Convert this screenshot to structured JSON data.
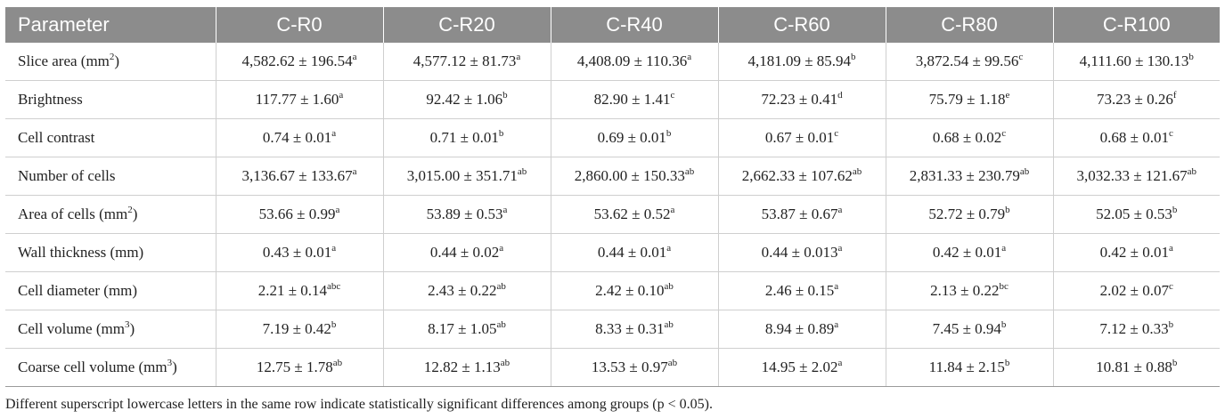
{
  "table": {
    "headers": [
      "Parameter",
      "C-R0",
      "C-R20",
      "C-R40",
      "C-R60",
      "C-R80",
      "C-R100"
    ],
    "rows": [
      {
        "param": "Slice area (mm",
        "param_sup": "2",
        "param_tail": ")",
        "cells": [
          {
            "v": "4,582.62 ± 196.54",
            "s": "a"
          },
          {
            "v": "4,577.12 ± 81.73",
            "s": "a"
          },
          {
            "v": "4,408.09 ± 110.36",
            "s": "a"
          },
          {
            "v": "4,181.09 ± 85.94",
            "s": "b"
          },
          {
            "v": "3,872.54 ± 99.56",
            "s": "c"
          },
          {
            "v": "4,111.60 ± 130.13",
            "s": "b"
          }
        ]
      },
      {
        "param": "Brightness",
        "param_sup": "",
        "param_tail": "",
        "cells": [
          {
            "v": "117.77 ± 1.60",
            "s": "a"
          },
          {
            "v": "92.42 ± 1.06",
            "s": "b"
          },
          {
            "v": "82.90 ± 1.41",
            "s": "c"
          },
          {
            "v": "72.23 ± 0.41",
            "s": "d"
          },
          {
            "v": "75.79 ± 1.18",
            "s": "e"
          },
          {
            "v": "73.23 ± 0.26",
            "s": "f"
          }
        ]
      },
      {
        "param": "Cell contrast",
        "param_sup": "",
        "param_tail": "",
        "cells": [
          {
            "v": "0.74 ± 0.01",
            "s": "a"
          },
          {
            "v": "0.71 ± 0.01",
            "s": "b"
          },
          {
            "v": "0.69 ± 0.01",
            "s": "b"
          },
          {
            "v": "0.67 ± 0.01",
            "s": "c"
          },
          {
            "v": "0.68 ± 0.02",
            "s": "c"
          },
          {
            "v": "0.68 ± 0.01",
            "s": "c"
          }
        ]
      },
      {
        "param": "Number of cells",
        "param_sup": "",
        "param_tail": "",
        "cells": [
          {
            "v": "3,136.67 ± 133.67",
            "s": "a"
          },
          {
            "v": "3,015.00 ± 351.71",
            "s": "ab"
          },
          {
            "v": "2,860.00 ± 150.33",
            "s": "ab"
          },
          {
            "v": "2,662.33 ± 107.62",
            "s": "ab"
          },
          {
            "v": "2,831.33 ± 230.79",
            "s": "ab"
          },
          {
            "v": "3,032.33 ± 121.67",
            "s": "ab"
          }
        ]
      },
      {
        "param": "Area of cells (mm",
        "param_sup": "2",
        "param_tail": ")",
        "cells": [
          {
            "v": "53.66 ± 0.99",
            "s": "a"
          },
          {
            "v": "53.89 ± 0.53",
            "s": "a"
          },
          {
            "v": "53.62 ± 0.52",
            "s": "a"
          },
          {
            "v": "53.87 ± 0.67",
            "s": "a"
          },
          {
            "v": "52.72 ± 0.79",
            "s": "b"
          },
          {
            "v": "52.05 ± 0.53",
            "s": "b"
          }
        ]
      },
      {
        "param": "Wall thickness (mm)",
        "param_sup": "",
        "param_tail": "",
        "cells": [
          {
            "v": "0.43 ± 0.01",
            "s": "a"
          },
          {
            "v": "0.44 ± 0.02",
            "s": "a"
          },
          {
            "v": "0.44 ± 0.01",
            "s": "a"
          },
          {
            "v": "0.44 ± 0.013",
            "s": "a"
          },
          {
            "v": "0.42 ± 0.01",
            "s": "a"
          },
          {
            "v": "0.42 ± 0.01",
            "s": "a"
          }
        ]
      },
      {
        "param": "Cell diameter (mm)",
        "param_sup": "",
        "param_tail": "",
        "cells": [
          {
            "v": "2.21 ± 0.14",
            "s": "abc"
          },
          {
            "v": "2.43 ± 0.22",
            "s": "ab"
          },
          {
            "v": "2.42 ± 0.10",
            "s": "ab"
          },
          {
            "v": "2.46 ± 0.15",
            "s": "a"
          },
          {
            "v": "2.13 ± 0.22",
            "s": "bc"
          },
          {
            "v": "2.02 ± 0.07",
            "s": "c"
          }
        ]
      },
      {
        "param": "Cell volume (mm",
        "param_sup": "3",
        "param_tail": ")",
        "cells": [
          {
            "v": "7.19 ± 0.42",
            "s": "b"
          },
          {
            "v": "8.17 ± 1.05",
            "s": "ab"
          },
          {
            "v": "8.33 ± 0.31",
            "s": "ab"
          },
          {
            "v": "8.94 ± 0.89",
            "s": "a"
          },
          {
            "v": "7.45 ± 0.94",
            "s": "b"
          },
          {
            "v": "7.12 ± 0.33",
            "s": "b"
          }
        ]
      },
      {
        "param": "Coarse cell volume (mm",
        "param_sup": "3",
        "param_tail": ")",
        "cells": [
          {
            "v": "12.75 ± 1.78",
            "s": "ab"
          },
          {
            "v": "12.82 ± 1.13",
            "s": "ab"
          },
          {
            "v": "13.53 ± 0.97",
            "s": "ab"
          },
          {
            "v": "14.95 ± 2.02",
            "s": "a"
          },
          {
            "v": "11.84 ± 2.15",
            "s": "b"
          },
          {
            "v": "10.81 ± 0.88",
            "s": "b"
          }
        ]
      }
    ]
  },
  "footnote": "Different superscript lowercase letters in the same row indicate statistically significant differences among groups (p < 0.05)."
}
